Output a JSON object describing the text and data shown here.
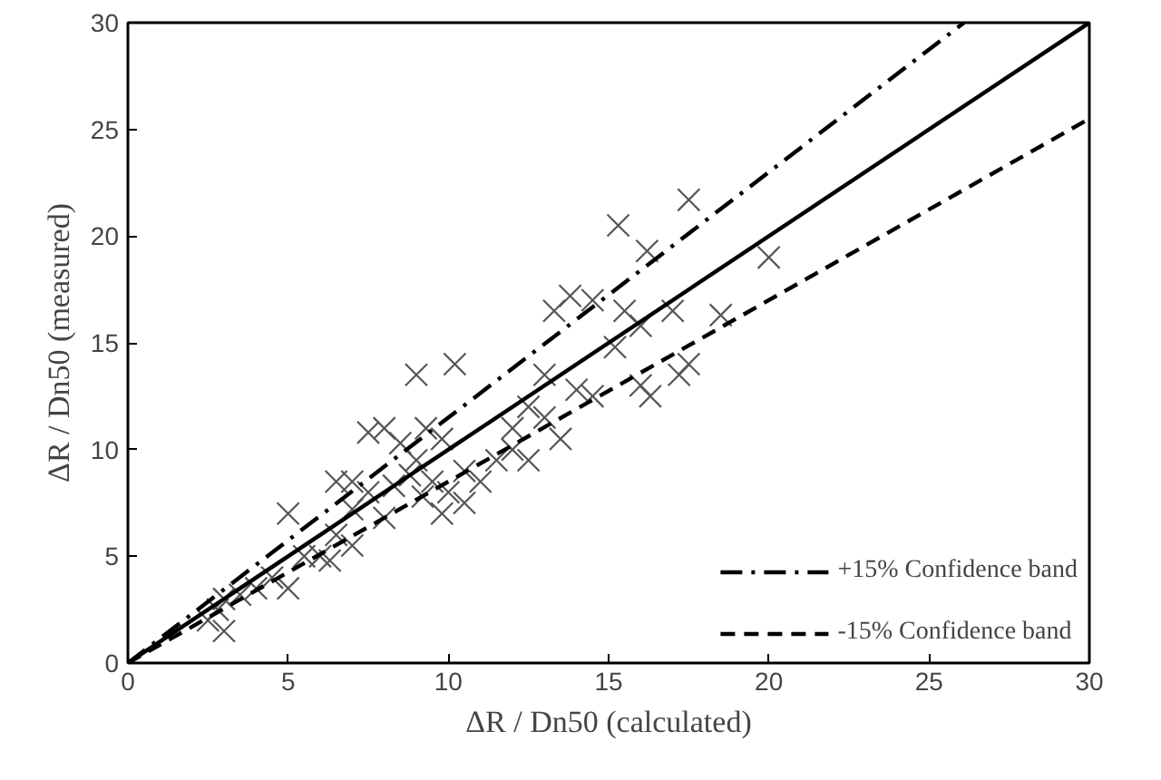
{
  "chart_data": {
    "type": "scatter",
    "xlabel": "ΔR / Dn50 (calculated)",
    "ylabel": "ΔR / Dn50 (measured)",
    "xlim": [
      0,
      30
    ],
    "ylim": [
      0,
      30
    ],
    "xticks": [
      0,
      5,
      10,
      15,
      20,
      25,
      30
    ],
    "yticks": [
      0,
      5,
      10,
      15,
      20,
      25,
      30
    ],
    "grid": false,
    "legend": "bottom right",
    "series": [
      {
        "marker": "cross",
        "color": "#555555",
        "x": [
          17.5,
          15.3,
          16.2,
          14.5,
          13.3,
          13.8,
          15.5,
          16,
          17,
          18.5,
          17.5,
          16,
          16.3,
          17.2,
          15.2,
          14,
          13,
          12.5,
          13,
          12,
          11.5,
          10.5,
          12,
          9,
          10.2,
          8,
          7.5,
          8.5,
          9.3,
          9.8,
          9,
          9.5,
          10,
          9.2,
          9.8,
          10.5,
          8.3,
          8.8,
          7.5,
          7,
          6.5,
          7,
          6.5,
          6,
          6.3,
          7,
          8,
          5,
          5.5,
          5,
          4.5,
          4,
          3.5,
          3,
          2.5,
          3,
          2.8,
          12.5,
          11,
          14.5,
          13.5,
          20
        ],
        "values": [
          21.7,
          20.5,
          19.3,
          17,
          16.5,
          17.2,
          16.5,
          15.8,
          16.5,
          16.3,
          14,
          13,
          12.5,
          13.5,
          14.8,
          12.8,
          11.5,
          12,
          13.5,
          11,
          9.5,
          9,
          10,
          13.5,
          14,
          11,
          10.8,
          10.3,
          11,
          10.5,
          9.5,
          8.5,
          8,
          7.8,
          7,
          7.5,
          8.3,
          8.8,
          8,
          8.5,
          8.5,
          7.2,
          6,
          5,
          4.8,
          5.5,
          6.8,
          7,
          5,
          3.5,
          4,
          3.5,
          3.2,
          3,
          2,
          1.5,
          2.5,
          9.5,
          8.5,
          12.5,
          10.5,
          19
        ]
      },
      {
        "type": "line",
        "color": "#000000",
        "line_style": "solid",
        "x": [
          0,
          30
        ],
        "values": [
          0,
          30
        ]
      },
      {
        "type": "line",
        "name": "+15% Confidence band",
        "color": "#000000",
        "line_style": "dashdot",
        "x": [
          0,
          26.09
        ],
        "values": [
          0,
          30
        ]
      },
      {
        "type": "line",
        "name": "-15% Confidence band",
        "color": "#000000",
        "line_style": "dashed",
        "x": [
          0,
          30
        ],
        "values": [
          0,
          25.5
        ]
      }
    ]
  }
}
